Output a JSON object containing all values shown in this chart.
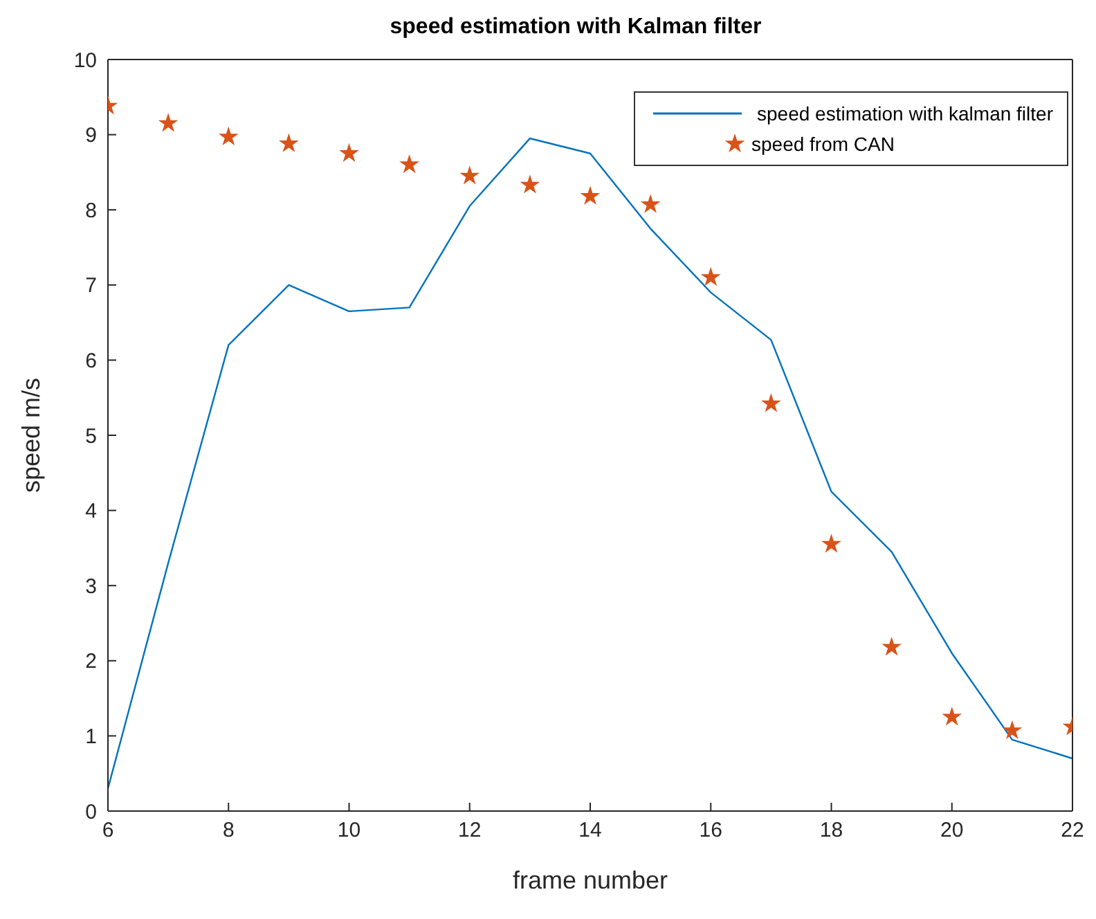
{
  "chart_data": {
    "type": "line",
    "title": "speed estimation with Kalman filter",
    "xlabel": "frame number",
    "ylabel": "speed m/s",
    "x": [
      6,
      7,
      8,
      9,
      10,
      11,
      12,
      13,
      14,
      15,
      16,
      17,
      18,
      19,
      20,
      21,
      22
    ],
    "series": [
      {
        "name": "speed estimation with kalman filter",
        "marker": "none",
        "color": "#0072bd",
        "values": [
          0.3,
          3.3,
          6.2,
          7.0,
          6.65,
          6.7,
          8.05,
          8.95,
          8.75,
          7.75,
          6.9,
          6.27,
          4.25,
          3.45,
          2.1,
          0.95,
          0.7
        ]
      },
      {
        "name": "speed from CAN",
        "type": "scatter",
        "marker": "star",
        "color": "#d95319",
        "values": [
          9.38,
          9.15,
          8.97,
          8.88,
          8.75,
          8.6,
          8.45,
          8.33,
          8.18,
          8.07,
          7.1,
          5.42,
          3.55,
          2.18,
          1.25,
          1.07,
          1.12
        ]
      }
    ],
    "xlim": [
      6,
      22
    ],
    "xticks": [
      6,
      8,
      10,
      12,
      14,
      16,
      18,
      20,
      22
    ],
    "ylim": [
      0,
      10
    ],
    "yticks": [
      0,
      1,
      2,
      3,
      4,
      5,
      6,
      7,
      8,
      9,
      10
    ],
    "grid": false,
    "legend": "top right"
  }
}
